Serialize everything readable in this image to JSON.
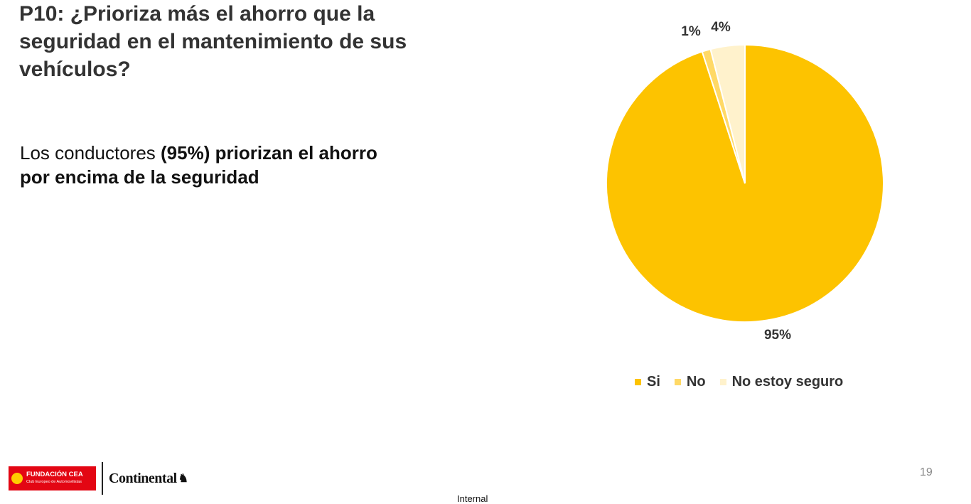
{
  "slide": {
    "title": "P10: ¿Prioriza más el ahorro que la seguridad en el mantenimiento de sus vehículos?",
    "subtitle_part1": "Los conductores ",
    "subtitle_bold": "(95%) priorizan el ahorro por encima de la seguridad",
    "page_number": "19",
    "classification": "Internal"
  },
  "logos": {
    "cea_name": "FUNDACIÓN CEA",
    "cea_tagline": "Club Europeo de Automovilistas",
    "continental": "Continental"
  },
  "chart_data": {
    "type": "pie",
    "title": "",
    "categories": [
      "Si",
      "No",
      "No estoy seguro"
    ],
    "values": [
      95,
      1,
      4
    ],
    "labels": [
      "95%",
      "1%",
      "4%"
    ],
    "colors": [
      "#fdc300",
      "#ffd966",
      "#fff2cc"
    ],
    "legend_position": "bottom",
    "start_angle": "12 o'clock",
    "direction": "clockwise"
  }
}
